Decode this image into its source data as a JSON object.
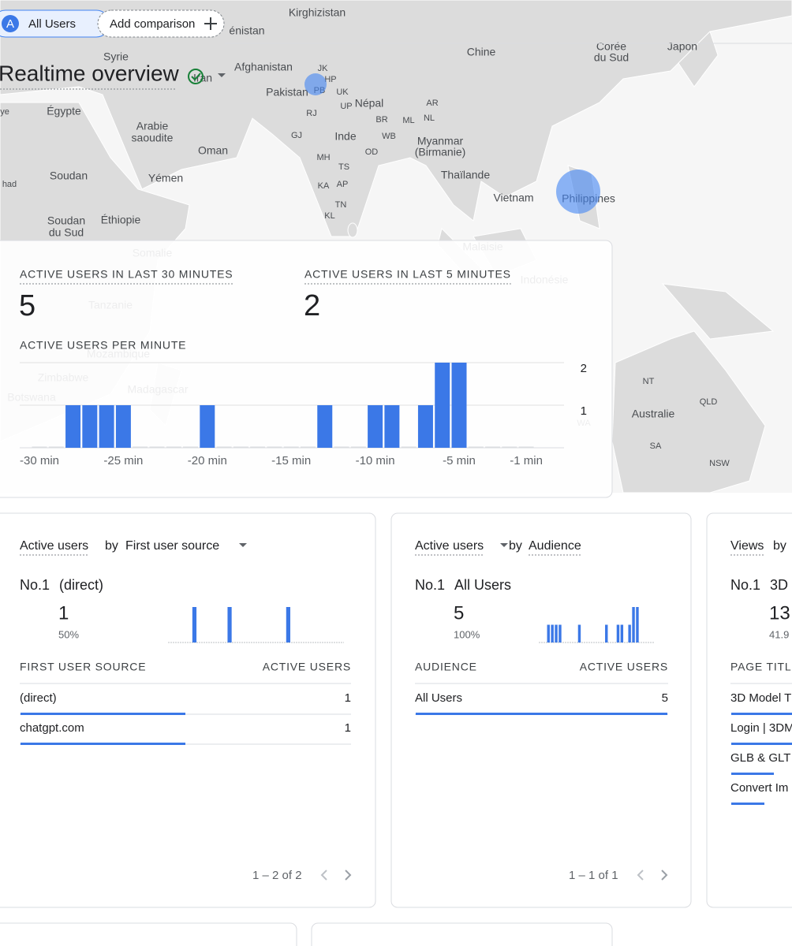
{
  "header": {
    "avatar": "A",
    "segment": "All Users",
    "add_comparison": "Add comparison"
  },
  "title": "Realtime overview",
  "map": {
    "labels": [
      "Kirghizistan",
      "énistan",
      "Chine",
      "Corée",
      "du Sud",
      "Japon",
      "Syrie",
      "Afghanistan",
      "Iran",
      "JK",
      "HP",
      "PB",
      "UK",
      "Pakistan",
      "UP",
      "Népal",
      "AR",
      "RJ",
      "BR",
      "ML",
      "NL",
      "ye",
      "Égypte",
      "Arabie",
      "saoudite",
      "Inde",
      "GJ",
      "WB",
      "Myanmar",
      "(Birmanie)",
      "OD",
      "Oman",
      "MH",
      "TS",
      "Thaïlande",
      "Soudan",
      "Yémen",
      "had",
      "KA",
      "AP",
      "Vietnam",
      "Philippines",
      "TN",
      "KL",
      "Soudan",
      "du Sud",
      "Éthiopie",
      "Somalie",
      "Malaisie",
      "Indonésie",
      "Tanzanie",
      "Mozambique",
      "Zimbabwe",
      "Botswana",
      "Madagascar",
      "NT",
      "QLD",
      "Australie",
      "WA",
      "SA",
      "NSW"
    ]
  },
  "summary": {
    "metrics": [
      {
        "label": "ACTIVE USERS IN LAST 30 MINUTES",
        "value": 5
      },
      {
        "label": "ACTIVE USERS IN LAST 5 MINUTES",
        "value": 2
      }
    ]
  },
  "chart_data": {
    "type": "bar",
    "title": "ACTIVE USERS PER MINUTE",
    "categories": [
      "-30 min",
      null,
      null,
      null,
      null,
      "-25 min",
      null,
      null,
      null,
      null,
      "-20 min",
      null,
      null,
      null,
      null,
      "-15 min",
      null,
      null,
      null,
      null,
      "-10 min",
      null,
      null,
      null,
      null,
      "-5 min",
      null,
      null,
      null,
      "-1 min"
    ],
    "values": [
      0,
      0,
      1,
      1,
      1,
      1,
      0,
      0,
      0,
      0,
      1,
      0,
      0,
      0,
      0,
      0,
      0,
      1,
      0,
      0,
      1,
      1,
      0,
      1,
      2,
      2,
      0,
      0,
      0,
      0
    ],
    "color": "#3b78e7",
    "ylim": [
      0,
      2
    ],
    "yticks": [
      1,
      2
    ],
    "grid": true
  },
  "cards": [
    {
      "metric": "Active users",
      "by": "by",
      "dimension": "First user source",
      "rank": "No.1",
      "top_name": "(direct)",
      "top_value": 1,
      "top_share": "50%",
      "spark": [
        0,
        0,
        0,
        0,
        1,
        0,
        0,
        0,
        0,
        0,
        1,
        0,
        0,
        0,
        0,
        0,
        0,
        0,
        0,
        0,
        1,
        0,
        0,
        0,
        0,
        0,
        0,
        0,
        0,
        0
      ],
      "columns": [
        "FIRST USER SOURCE",
        "ACTIVE USERS"
      ],
      "rows": [
        {
          "name": "(direct)",
          "value": 1
        },
        {
          "name": "chatgpt.com",
          "value": 1
        }
      ],
      "pagination": "1 – 2 of 2"
    },
    {
      "metric": "Active users",
      "by": "by",
      "dimension": "Audience",
      "rank": "No.1",
      "top_name": "All Users",
      "top_value": 5,
      "top_share": "100%",
      "spark": [
        0,
        0,
        1,
        1,
        1,
        1,
        0,
        0,
        0,
        0,
        1,
        0,
        0,
        0,
        0,
        0,
        0,
        1,
        0,
        0,
        1,
        1,
        0,
        1,
        2,
        2,
        0,
        0,
        0,
        0
      ],
      "columns": [
        "AUDIENCE",
        "ACTIVE USERS"
      ],
      "rows": [
        {
          "name": "All Users",
          "value": 5
        }
      ],
      "pagination": "1 – 1 of 1"
    },
    {
      "metric": "Views",
      "by": "by",
      "rank": "No.1",
      "top_name": "3D",
      "top_value": 13,
      "top_share": "41.9",
      "columns": [
        "PAGE TITL"
      ],
      "rows": [
        {
          "name": "3D Model T"
        },
        {
          "name": "Login | 3DM"
        },
        {
          "name": "GLB & GLT"
        },
        {
          "name": "Convert Im"
        }
      ]
    }
  ]
}
